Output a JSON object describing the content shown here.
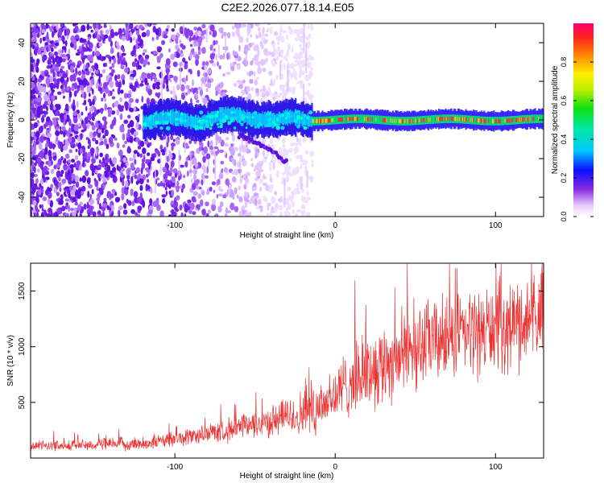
{
  "title": "C2E2.2026.077.18.14.E05",
  "colors": {
    "snr_line": "#ee3030",
    "spectrogram_core": "#00d8ff",
    "spectrogram_peak": "#ff3030",
    "noise": "#7a2cf0"
  },
  "chart_data": [
    {
      "type": "heatmap",
      "name": "spectrogram",
      "xlabel": "Height of straight line (km)",
      "ylabel": "Frequency (Hz)",
      "xlim": [
        -190,
        130
      ],
      "ylim": [
        -50,
        50
      ],
      "xticks": [
        -100,
        0,
        100
      ],
      "yticks": [
        -40,
        -20,
        0,
        20,
        40
      ],
      "tick_labels_x": [
        "-100",
        "0",
        "100"
      ],
      "tick_labels_y": [
        "-40",
        "-20",
        "0",
        "20",
        "40"
      ],
      "colorbar": {
        "label": "Normalized spectral amplitude",
        "range": [
          0,
          1
        ],
        "ticks": [
          0.0,
          0.2,
          0.4,
          0.6,
          0.8
        ],
        "tick_labels": [
          "0.0",
          "0.2",
          "0.4",
          "0.6",
          "0.8"
        ]
      },
      "features": {
        "noise_region_x": [
          -190,
          -20
        ],
        "signal_band": {
          "x_start": -120,
          "x_end": 130,
          "center_hz": 0
        },
        "strong_signal_from_x": -15,
        "branch": {
          "x": [
            -60,
            -50,
            -40,
            -30
          ],
          "hz": [
            -8,
            -12,
            -16,
            -22
          ]
        }
      }
    },
    {
      "type": "line",
      "name": "snr",
      "xlabel": "Height of straight line (km)",
      "ylabel": "SNR (10 * v/v)",
      "xlim": [
        -190,
        130
      ],
      "ylim": [
        0,
        1750
      ],
      "xticks": [
        -100,
        0,
        100
      ],
      "yticks": [
        500,
        1000,
        1500
      ],
      "tick_labels_x": [
        "-100",
        "0",
        "100"
      ],
      "tick_labels_y": [
        "500",
        "1000",
        "1500"
      ],
      "trend": {
        "x": [
          -190,
          -150,
          -120,
          -100,
          -80,
          -60,
          -40,
          -20,
          -10,
          0,
          10,
          30,
          50,
          70,
          90,
          110,
          130
        ],
        "y": [
          110,
          120,
          130,
          170,
          220,
          270,
          330,
          400,
          480,
          560,
          700,
          850,
          1000,
          1080,
          1140,
          1200,
          1260
        ]
      },
      "noise_amplitude": {
        "x": [
          -190,
          -100,
          -40,
          -10,
          30,
          130
        ],
        "y": [
          45,
          70,
          140,
          260,
          380,
          420
        ]
      }
    }
  ]
}
